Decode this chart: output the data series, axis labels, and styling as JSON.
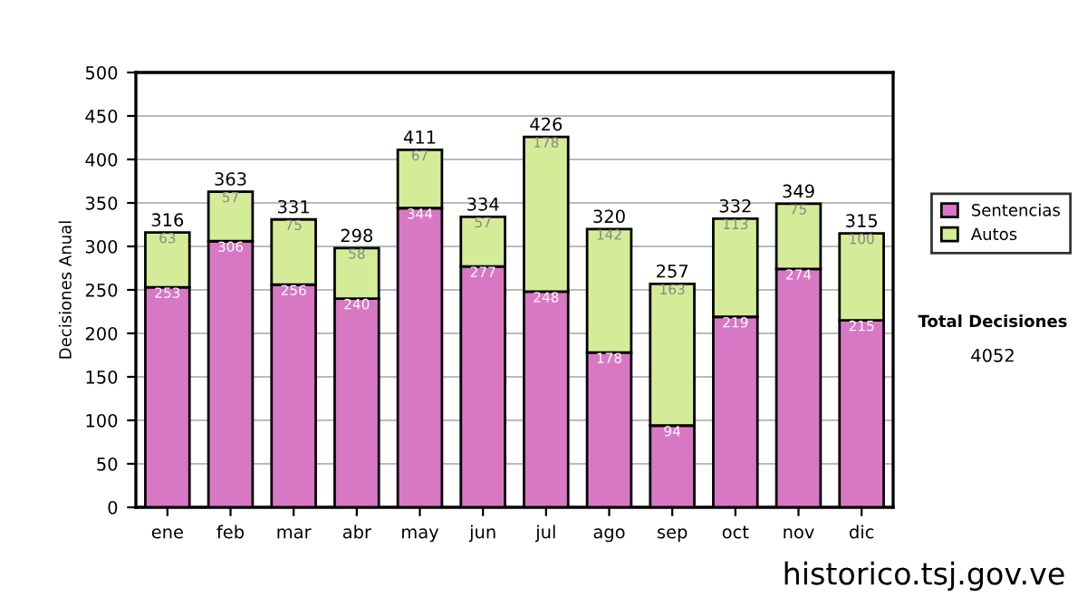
{
  "chart_data": {
    "type": "bar",
    "stacked": true,
    "ylabel": "Decisiones Anual",
    "categories": [
      "ene",
      "feb",
      "mar",
      "abr",
      "may",
      "jun",
      "jul",
      "ago",
      "sep",
      "oct",
      "nov",
      "dic"
    ],
    "series": [
      {
        "name": "Sentencias",
        "color": "#d877c4",
        "values": [
          253,
          306,
          256,
          240,
          344,
          277,
          248,
          178,
          94,
          219,
          274,
          215
        ]
      },
      {
        "name": "Autos",
        "color": "#d4ec98",
        "values": [
          63,
          57,
          75,
          58,
          67,
          57,
          178,
          142,
          163,
          113,
          75,
          100
        ]
      }
    ],
    "totals": [
      "316",
      "363",
      "331",
      "298",
      "411",
      "334",
      "426",
      "320",
      "257",
      "332",
      "349",
      "315"
    ],
    "data_labels": true,
    "ylim": [
      0,
      500
    ],
    "yticks": [
      0,
      50,
      100,
      150,
      200,
      250,
      300,
      350,
      400,
      450,
      500
    ],
    "grid": "y",
    "legend": "right",
    "annotations": [
      "Total Decisiones",
      "4052",
      "historico.tsj.gov.ve"
    ]
  }
}
